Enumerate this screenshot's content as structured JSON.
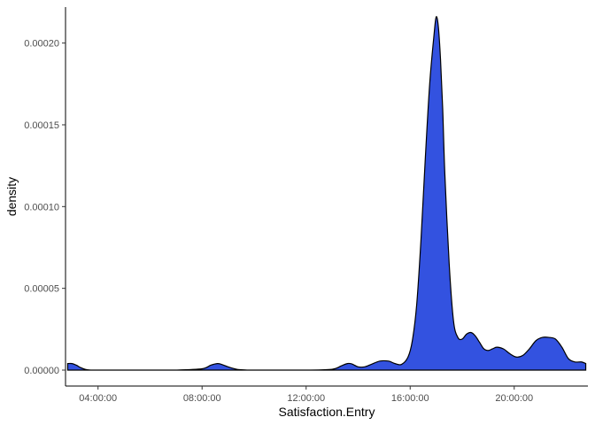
{
  "chart_data": {
    "type": "area",
    "title": "",
    "xlabel": "Satisfaction.Entry",
    "ylabel": "density",
    "fill_color": "#3352e0",
    "line_color": "#000000",
    "grid": false,
    "legend": "none",
    "x_axis": {
      "unit": "time of day",
      "range": [
        "02:45:00",
        "22:50:00"
      ],
      "ticks": [
        "04:00:00",
        "08:00:00",
        "12:00:00",
        "16:00:00",
        "20:00:00"
      ]
    },
    "y_axis": {
      "range": [
        0,
        0.000222
      ],
      "ticks": [
        "0.00000",
        "0.00005",
        "0.00010",
        "0.00015",
        "0.00020"
      ]
    },
    "x": [
      "02:50:00",
      "03:00:00",
      "03:10:00",
      "03:20:00",
      "03:30:00",
      "03:40:00",
      "04:00:00",
      "05:00:00",
      "06:00:00",
      "07:00:00",
      "08:00:00",
      "08:20:00",
      "08:35:00",
      "08:45:00",
      "09:00:00",
      "09:20:00",
      "09:40:00",
      "10:00:00",
      "11:00:00",
      "12:00:00",
      "13:00:00",
      "13:20:00",
      "13:35:00",
      "13:45:00",
      "14:00:00",
      "14:15:00",
      "14:30:00",
      "14:50:00",
      "15:10:00",
      "15:25:00",
      "15:40:00",
      "15:55:00",
      "16:05:00",
      "16:15:00",
      "16:25:00",
      "16:35:00",
      "16:45:00",
      "16:55:00",
      "17:00:00",
      "17:05:00",
      "17:10:00",
      "17:15:00",
      "17:20:00",
      "17:30:00",
      "17:40:00",
      "17:50:00",
      "18:00:00",
      "18:10:00",
      "18:20:00",
      "18:30:00",
      "18:40:00",
      "18:50:00",
      "19:00:00",
      "19:10:00",
      "19:20:00",
      "19:35:00",
      "19:50:00",
      "20:05:00",
      "20:20:00",
      "20:35:00",
      "20:50:00",
      "21:05:00",
      "21:20:00",
      "21:35:00",
      "21:50:00",
      "22:05:00",
      "22:20:00",
      "22:35:00",
      "22:45:00"
    ],
    "y": [
      4e-06,
      4e-06,
      3e-06,
      1.5e-06,
      5e-07,
      1e-07,
      0,
      0,
      0,
      0,
      8e-07,
      3e-06,
      4e-06,
      3.5e-06,
      2e-06,
      5e-07,
      1e-07,
      0,
      0,
      0,
      5e-07,
      2.5e-06,
      4e-06,
      3.8e-06,
      2e-06,
      2e-06,
      3.5e-06,
      5.5e-06,
      5.5e-06,
      4e-06,
      3.5e-06,
      8e-06,
      1.8e-05,
      4e-05,
      8e-05,
      0.00013,
      0.000175,
      0.000205,
      0.000216,
      0.00021,
      0.00019,
      0.00016,
      0.00012,
      6.5e-05,
      3e-05,
      2e-05,
      1.9e-05,
      2.2e-05,
      2.3e-05,
      2.1e-05,
      1.7e-05,
      1.3e-05,
      1.2e-05,
      1.3e-05,
      1.4e-05,
      1.3e-05,
      1e-05,
      8e-06,
      9e-06,
      1.3e-05,
      1.8e-05,
      2e-05,
      2e-05,
      1.9e-05,
      1.4e-05,
      7e-06,
      5e-06,
      5e-06,
      4e-06
    ]
  }
}
